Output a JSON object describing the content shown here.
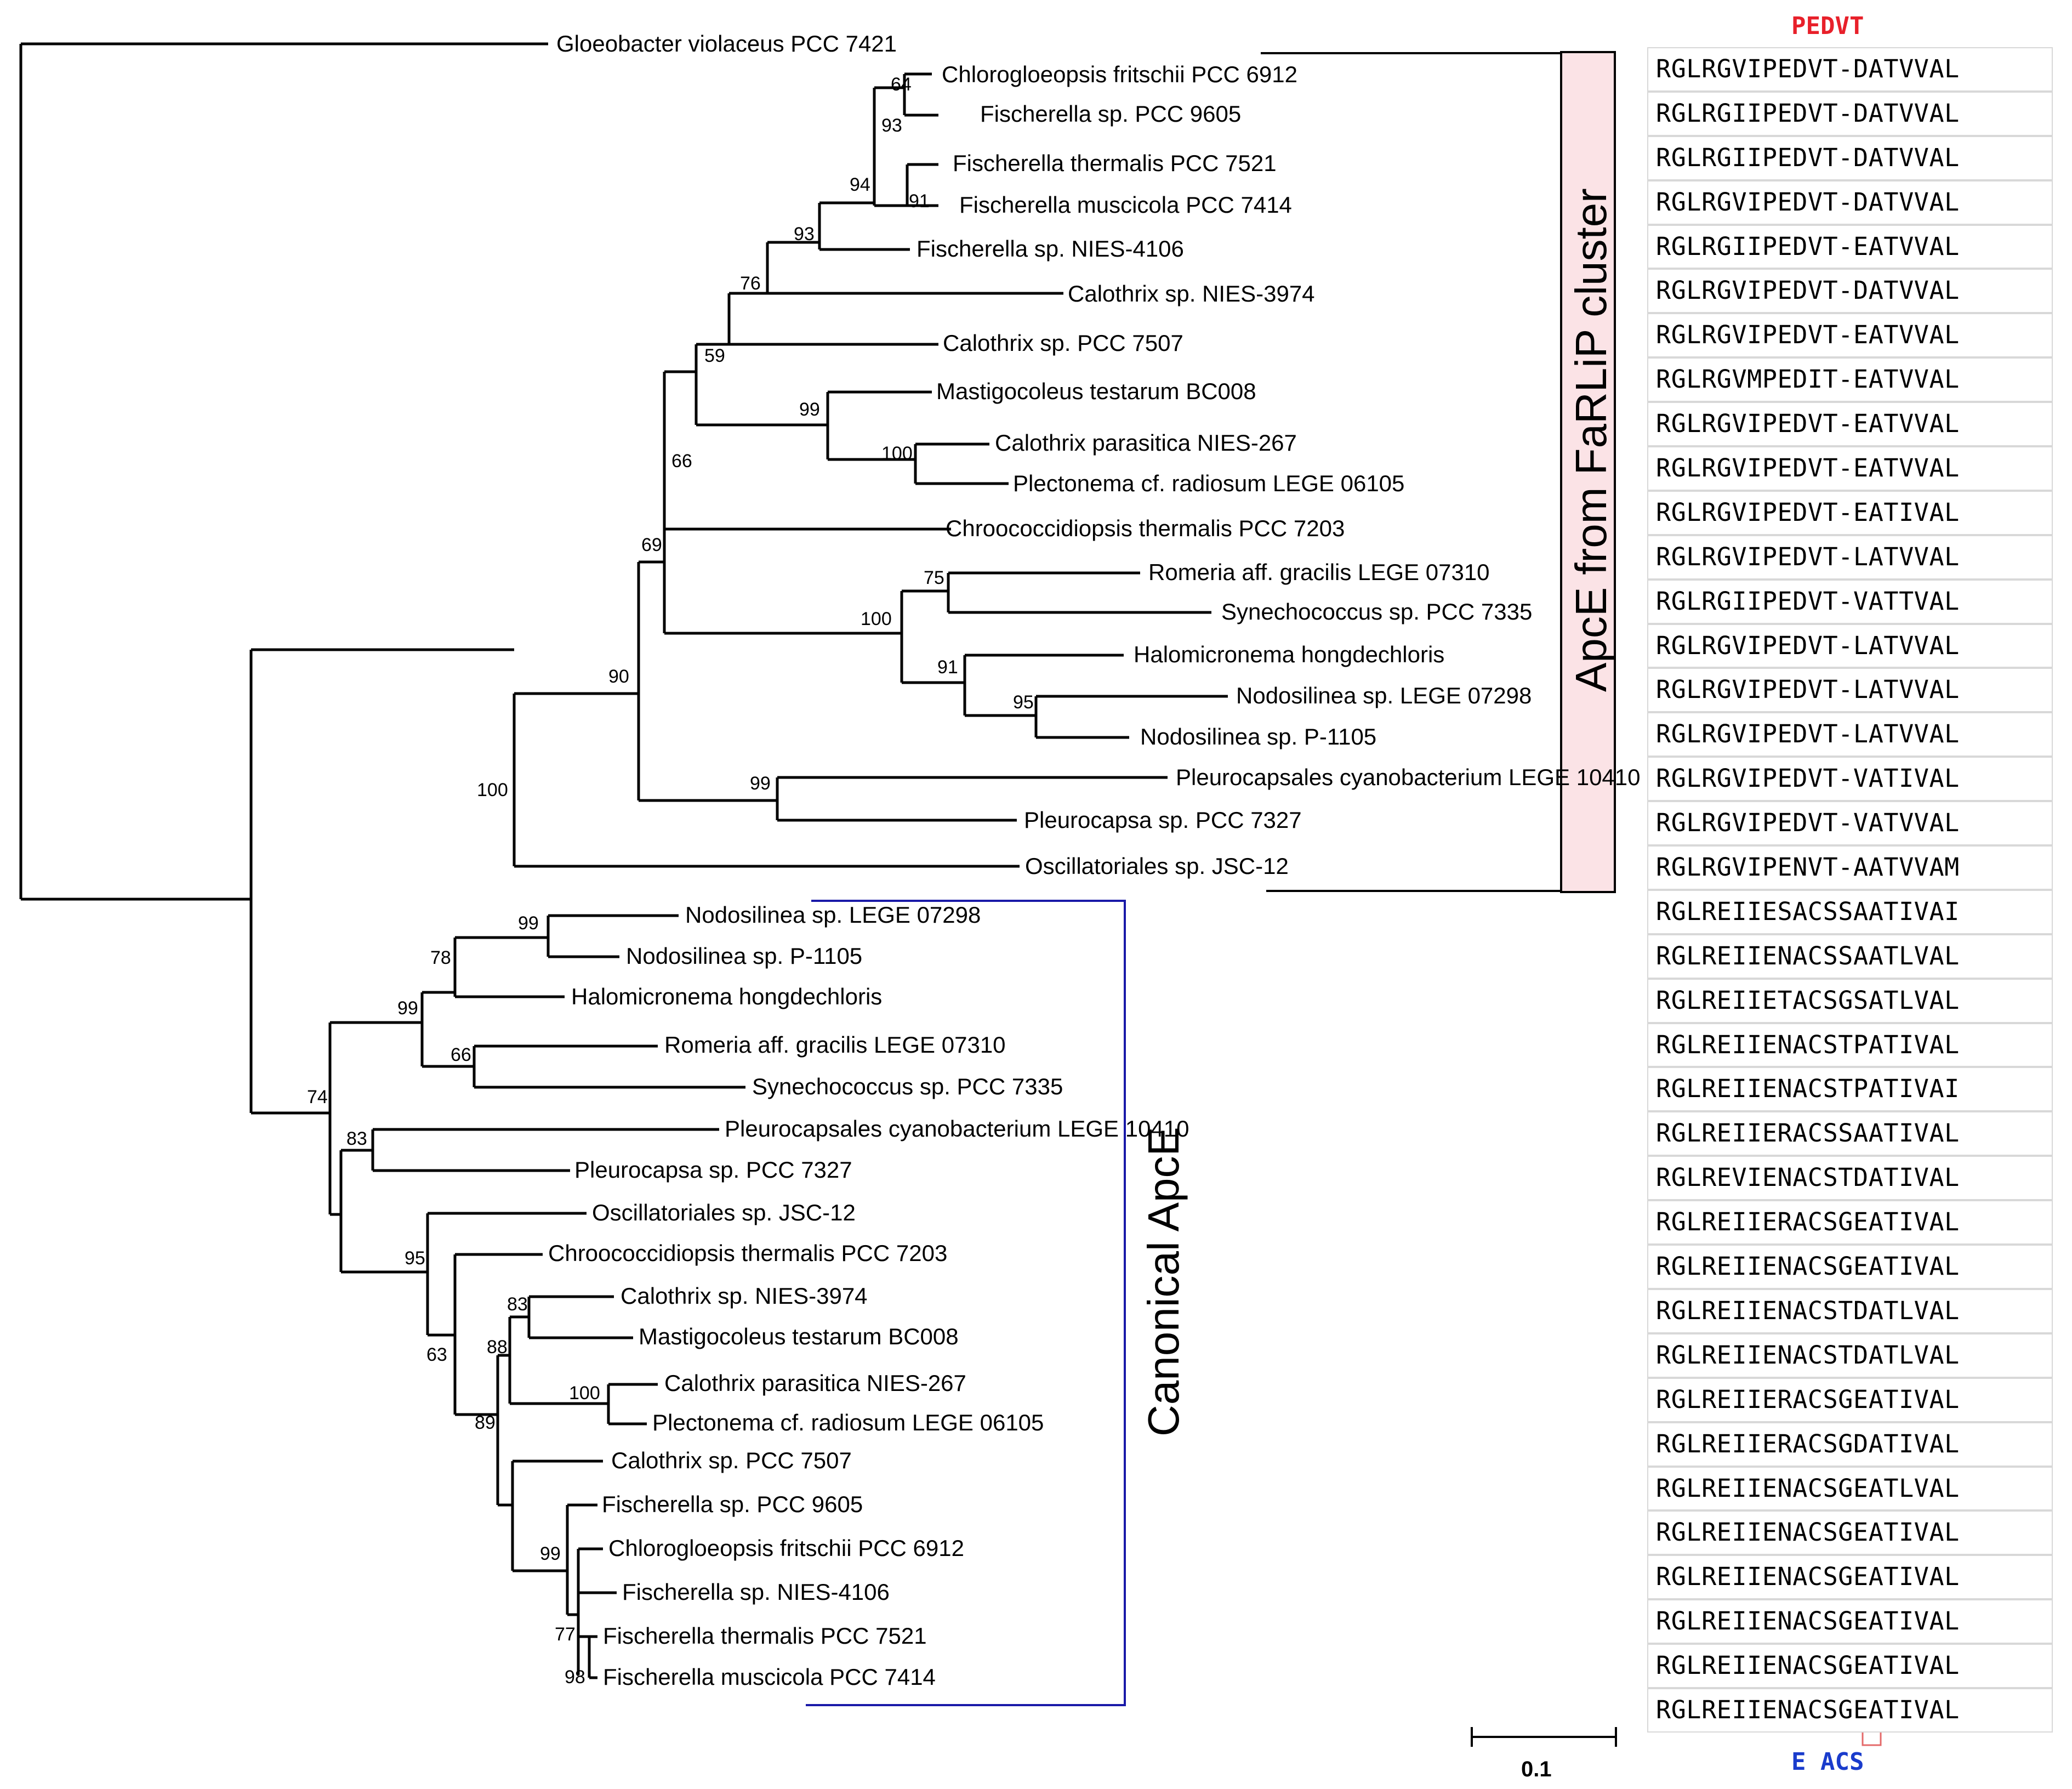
{
  "colors": {
    "farlip_highlight": "#fbe3e6",
    "canonical_bracket": "#1a1aa8",
    "pedvt_motif": "#e8202a",
    "acs_motif": "#1a3ccc",
    "acs_box": "#e46a6a"
  },
  "outgroup": {
    "name": "Gloeobacter violaceus PCC 7421"
  },
  "farlip_cluster": {
    "label": "ApcE from FaRLiP cluster",
    "taxa": [
      "Chlorogloeopsis fritschii PCC 6912",
      "Fischerella sp. PCC 9605",
      "Fischerella thermalis PCC 7521",
      "Fischerella muscicola PCC 7414",
      "Fischerella sp. NIES-4106",
      "Calothrix sp. NIES-3974",
      "Calothrix sp. PCC 7507",
      "Mastigocoleus testarum BC008",
      "Calothrix parasitica NIES-267",
      "Plectonema cf. radiosum LEGE 06105",
      "Chroococcidiopsis thermalis PCC 7203",
      "Romeria aff. gracilis LEGE 07310",
      "Synechococcus sp. PCC 7335",
      "Halomicronema hongdechloris",
      "Nodosilinea sp. LEGE 07298",
      "Nodosilinea sp. P-1105",
      "Pleurocapsales cyanobacterium LEGE 10410",
      "Pleurocapsa sp. PCC 7327",
      "Oscillatoriales sp. JSC-12"
    ],
    "bootstrap": [
      "64",
      "93",
      "91",
      "94",
      "93",
      "76",
      "59",
      "99",
      "100",
      "66",
      "69",
      "75",
      "100",
      "91",
      "95",
      "90",
      "99",
      "100"
    ]
  },
  "canonical_cluster": {
    "label": "Canonical ApcE",
    "taxa": [
      "Nodosilinea sp. LEGE 07298",
      "Nodosilinea sp. P-1105",
      "Halomicronema hongdechloris",
      "Romeria aff. gracilis LEGE 07310",
      "Synechococcus sp. PCC 7335",
      "Pleurocapsales cyanobacterium LEGE 10410",
      "Pleurocapsa sp. PCC 7327",
      "Oscillatoriales sp. JSC-12",
      "Chroococcidiopsis thermalis PCC 7203",
      "Calothrix sp. NIES-3974",
      "Mastigocoleus testarum BC008",
      "Calothrix parasitica NIES-267",
      "Plectonema cf. radiosum LEGE 06105",
      "Calothrix sp. PCC 7507",
      "Fischerella sp. PCC 9605",
      "Chlorogloeopsis fritschii PCC 6912",
      "Fischerella sp. NIES-4106",
      "Fischerella thermalis PCC 7521",
      "Fischerella muscicola PCC 7414"
    ],
    "bootstrap": [
      "99",
      "78",
      "99",
      "66",
      "74",
      "83",
      "95",
      "83",
      "88",
      "100",
      "63",
      "89",
      "99",
      "77",
      "98"
    ]
  },
  "alignment": {
    "top_motif": "PEDVT",
    "bottom_motif": "E ACS",
    "farlip_sequences": [
      "RGLRGVIPEDVT-DATVVAL",
      "RGLRGIIPEDVT-DATVVAL",
      "RGLRGIIPEDVT-DATVVAL",
      "RGLRGVIPEDVT-DATVVAL",
      "RGLRGIIPEDVT-EATVVAL",
      "RGLRGVIPEDVT-DATVVAL",
      "RGLRGVIPEDVT-EATVVAL",
      "RGLRGVMPEDIT-EATVVAL",
      "RGLRGVIPEDVT-EATVVAL",
      "RGLRGVIPEDVT-EATVVAL",
      "RGLRGVIPEDVT-EATIVAL",
      "RGLRGVIPEDVT-LATVVAL",
      "RGLRGIIPEDVT-VATTVAL",
      "RGLRGVIPEDVT-LATVVAL",
      "RGLRGVIPEDVT-LATVVAL",
      "RGLRGVIPEDVT-LATVVAL",
      "RGLRGVIPEDVT-VATIVAL",
      "RGLRGVIPEDVT-VATVVAL",
      "RGLRGVIPENVT-AATVVAM"
    ],
    "canonical_sequences": [
      "RGLREIIESACSSAATIVAI",
      "RGLREIIENACSSAATLVAL",
      "RGLREIIETACSGSATLVAL",
      "RGLREIIENACSTPATIVAL",
      "RGLREIIENACSTPATIVAI",
      "RGLREIIERACSSAATIVAL",
      "RGLREVIENACSTDATIVAL",
      "RGLREIIERACSGEATIVAL",
      "RGLREIIENACSGEATIVAL",
      "RGLREIIENACSTDATLVAL",
      "RGLREIIENACSTDATLVAL",
      "RGLREIIERACSGEATIVAL",
      "RGLREIIERACSGDATIVAL",
      "RGLREIIENACSGEATLVAL",
      "RGLREIIENACSGEATIVAL",
      "RGLREIIENACSGEATIVAL",
      "RGLREIIENACSGEATIVAL",
      "RGLREIIENACSGEATIVAL",
      "RGLREIIENACSGEATIVAL"
    ]
  },
  "scale_bar": {
    "label": "0.1"
  }
}
